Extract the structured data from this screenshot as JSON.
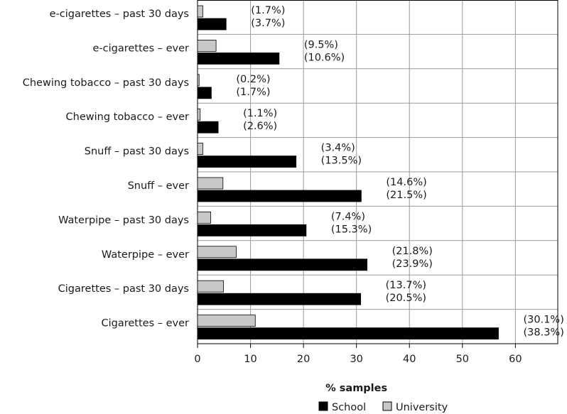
{
  "colors": {
    "school": "#000000",
    "university": "#c8c8c8",
    "bar_stroke": "#000000",
    "grid": "#9a9a9a"
  },
  "chart_data": {
    "type": "bar",
    "orientation": "horizontal",
    "categories": [
      "e-cigarettes – past 30 days",
      "e-cigarettes – ever",
      "Chewing tobacco – past 30 days",
      "Chewing tobacco – ever",
      "Snuff – past 30 days",
      "Snuff – ever",
      "Waterpipe – past 30 days",
      "Waterpipe – ever",
      "Cigarettes – past 30 days",
      "Cigarettes – ever"
    ],
    "series": [
      {
        "name": "University",
        "values": [
          1.0,
          3.5,
          0.3,
          0.5,
          1.0,
          4.8,
          2.5,
          7.3,
          4.9,
          10.9
        ]
      },
      {
        "name": "School",
        "values": [
          5.4,
          15.4,
          2.6,
          3.9,
          18.6,
          30.9,
          20.5,
          32.0,
          30.8,
          56.8
        ]
      }
    ],
    "data_labels": {
      "university": [
        "(1.7%)",
        "(9.5%)",
        "(0.2%)",
        "(1.1%)",
        "(3.4%)",
        "(14.6%)",
        "(7.4%)",
        "(21.8%)",
        "(13.7%)",
        "(30.1%)"
      ],
      "school": [
        "(3.7%)",
        "(10.6%)",
        "(1.7%)",
        "(2.6%)",
        "(13.5%)",
        "(21.5%)",
        "(15.3%)",
        "(23.9%)",
        "(20.5%)",
        "(38.3%)"
      ]
    },
    "xlabel": "% samples",
    "ylabel": "",
    "title": "",
    "xlim": [
      0,
      68
    ],
    "xticks": [
      0,
      10,
      20,
      30,
      40,
      50,
      60
    ],
    "grid": true,
    "legend_position": "bottom-center",
    "legend": [
      {
        "name": "School",
        "color_key": "school"
      },
      {
        "name": "University",
        "color_key": "university"
      }
    ]
  }
}
